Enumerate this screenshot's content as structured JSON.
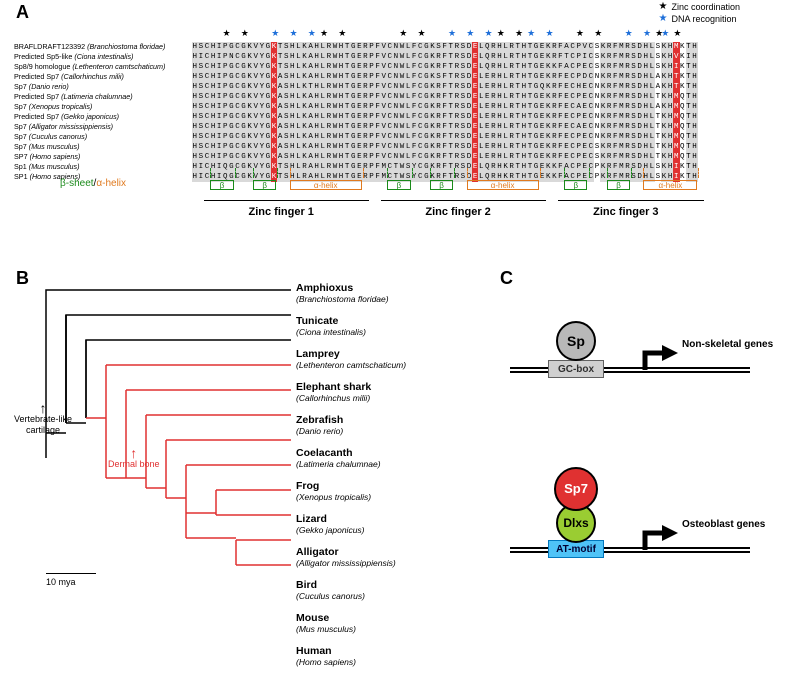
{
  "panelA": {
    "label": "A",
    "legend": {
      "zinc": "Zinc coordination",
      "dna": "DNA recognition"
    },
    "star_positions": {
      "black": [
        5,
        8,
        21,
        24,
        34,
        37,
        50,
        53,
        63,
        66,
        76,
        79
      ],
      "blue": [
        13,
        16,
        19,
        42,
        45,
        48,
        55,
        58,
        71,
        74,
        77,
        84
      ]
    },
    "species": [
      {
        "name": "BRAFLDRAFT123392",
        "ital": "(Branchiostoma floridae)"
      },
      {
        "name": "Predicted Sp5-like",
        "ital": "(Ciona intestinalis)"
      },
      {
        "name": "Sp8/9 homologue",
        "ital": "(Lethenteron camtschaticum)"
      },
      {
        "name": "Predicted Sp7",
        "ital": "(Callorhinchus milii)"
      },
      {
        "name": "Sp7",
        "ital": "(Danio rerio)"
      },
      {
        "name": "Predicted Sp7",
        "ital": "(Latimeria chalumnae)"
      },
      {
        "name": "Sp7",
        "ital": "(Xenopus tropicalis)"
      },
      {
        "name": "Predicted Sp7",
        "ital": "(Gekko japonicus)"
      },
      {
        "name": "Sp7",
        "ital": "(Alligator mississippiensis)"
      },
      {
        "name": "Sp7",
        "ital": "(Cuculus canorus)"
      },
      {
        "name": "Sp7",
        "ital": "(Mus musculus)"
      },
      {
        "name": "SP7",
        "ital": "(Homo sapiens)"
      },
      {
        "name": "Sp1",
        "ital": "(Mus musculus)"
      },
      {
        "name": "SP1",
        "ital": "(Homo sapiens)"
      }
    ],
    "sequences": [
      "HSCHIPGCGKVYGKTSHLKAHLRWHTGERPFVCNWLFCGKSFTRSDELQRHLRTHTGEKRFACPVCSKRFMRSDHLSKHMKTH",
      "HICHIPNCGKVYGKTSHLKAHLRWHTGERPFVCNWLFCGKRFTRSDELQRHLRTHTGEKRFTCPICSKRFMRSDHLSKHVKIH",
      "HSCHIPGCGKVYGKTSHLKAHLRWHTGERPFVCNWLFCGKRFTRSDELQRHLRTHTGEKKFACPECSKRFMRSDHLSKHIKTH",
      "HSCHIPGCGKVYGKASHLKAHLRWHTGERPFVCNWLFCGKSFTRSDELERHLRTHTGEKRFECPDCNKRFMRSDHLAKHTKTH",
      "HSCHIPGCGKVYGKASHLKTHLRWHTGERPFVCNWLFCGKRFTRSDELERHLRTHTGQKRFECHECNKRFMRSDHLAKHTKTH",
      "HSCHIPGCGKVYGKASHLKAHLRWHTGERPFVCNWLFCGKRFTRSDELERHLRTHTGEKRFECPECNKRFMRSDHLTKHMQTH",
      "HSCHIPGCGKVYGKASHLKAHLRWHTGERPFVCNWLFCGKRFTRSDELERHLRTHTGEKRFECAECNKRFMRSDHLAKHMQTH",
      "HSCHIPGCGKVYGKASHLKAHLRWHTGERPFVCNWLFCGKRFTRSDELERHLRTHTGEKRFECPECNKRFMRSDHLTKHMQTH",
      "HSCHIPGCGKVYGKASHLKAHLRWHTGERPFVCNWLFCGKRFTRSDELERHLRTHTGEKRFECAECNKRFMRSDHLTKHMQTH",
      "HSCHIPGCGKVYGKASHLKAHLRWHTGERPFVCNWLFCGKRFTRSDELERHLRTHTGEKRFECPECNKRFMRSDHLTKHMQTH",
      "HSCHIPGCGKVYGKASHLKAHLRWHTGERPFVCNWLFCGKRFTRSDELERHLRTHTGEKRFECPECSKRFMRSDHLTKHMQTH",
      "HSCHIPGCGKVYGKASHLKAHLRWHTGERPFVCNWLFCGKRFTRSDELERHLRTHTGEKRFECPECSKRFMRSDHLTKHMQTH",
      "HICHIQGCGKVYGKTSHLRAHLRWHTGERPFMCTWSYCGKRFTRSDELQRHKRTHTGEKKFACPECPKRFMRSDHLSKHIKTH",
      "HICHIQGCGKVYGKTSHLRAHLRWHTGERPFMCTWSYCGKRFTRSDELQRHKRTHTGEKKFACPECPKRFMRSDHLSKHIKTH"
    ],
    "highlight_cols": [
      13,
      46,
      79
    ],
    "secstruct": {
      "label_beta": "β-sheet",
      "label_alpha": "α-helix",
      "zf1": {
        "label": "Zinc finger 1",
        "start": 2,
        "end": 28,
        "beta1": [
          3,
          6
        ],
        "beta2": [
          10,
          13
        ],
        "alpha": [
          16,
          27
        ]
      },
      "zf2": {
        "label": "Zinc finger 2",
        "start": 31,
        "end": 57,
        "beta1": [
          32,
          35
        ],
        "beta2": [
          39,
          42
        ],
        "alpha": [
          45,
          56
        ]
      },
      "zf3": {
        "label": "Zinc finger 3",
        "start": 60,
        "end": 83,
        "beta1": [
          61,
          64
        ],
        "beta2": [
          68,
          71
        ],
        "alpha": [
          74,
          82
        ]
      }
    }
  },
  "panelB": {
    "label": "B",
    "taxa": [
      {
        "common": "Amphioxus",
        "sci": "(Branchiostoma floridae)"
      },
      {
        "common": "Tunicate",
        "sci": "(Ciona intestinalis)"
      },
      {
        "common": "Lamprey",
        "sci": "(Lethenteron camtschaticum)"
      },
      {
        "common": "Elephant shark",
        "sci": "(Callorhinchus milii)"
      },
      {
        "common": "Zebrafish",
        "sci": "(Danio rerio)"
      },
      {
        "common": "Coelacanth",
        "sci": "(Latimeria chalumnae)"
      },
      {
        "common": "Frog",
        "sci": "(Xenopus tropicalis)"
      },
      {
        "common": "Lizard",
        "sci": "(Gekko japonicus)"
      },
      {
        "common": "Alligator",
        "sci": "(Alligator mississippiensis)"
      },
      {
        "common": "Bird",
        "sci": "(Cuculus canorus)"
      },
      {
        "common": "Mouse",
        "sci": "(Mus musculus)"
      },
      {
        "common": "Human",
        "sci": "(Homo sapiens)"
      }
    ],
    "cartilage_label": "Vertebrate-like\ncartilage",
    "dermal_label": "Dermal bone",
    "scale": "10 mya",
    "colors": {
      "black": "#000000",
      "red": "#e03131"
    }
  },
  "panelC": {
    "label": "C",
    "top": {
      "tf": "Sp",
      "tf_color": "#b8b8b8",
      "motif": "GC-box",
      "motif_bg": "#d0d0d0",
      "motif_border": "#606060",
      "target": "Non-skeletal genes"
    },
    "bottom": {
      "tf": "Sp7",
      "tf_color": "#e03131",
      "cofactor": "Dlxs",
      "cofactor_color": "#9acd32",
      "motif": "AT-motif",
      "motif_bg": "#4fc3f7",
      "motif_border": "#0277bd",
      "target": "Osteoblast genes"
    }
  }
}
